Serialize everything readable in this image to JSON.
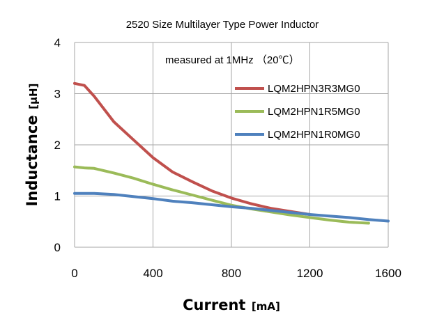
{
  "chart_data": {
    "type": "line",
    "title": "2520 Size Multilayer Type Power Inductor",
    "annotation": "measured at 1MHz （20℃）",
    "xlabel": "Current",
    "xlabel_unit": "[mA]",
    "ylabel": "Inductance",
    "ylabel_unit": "[μH]",
    "xlim": [
      0,
      1600
    ],
    "ylim": [
      0,
      4
    ],
    "x_ticks": [
      0,
      400,
      800,
      1200,
      1600
    ],
    "y_ticks": [
      0,
      1,
      2,
      3,
      4
    ],
    "grid": true,
    "legend_position": "top-right",
    "series": [
      {
        "name": "LQM2HPN3R3MG0",
        "color": "#c0504d",
        "points": [
          [
            0,
            3.2
          ],
          [
            50,
            3.16
          ],
          [
            100,
            2.95
          ],
          [
            200,
            2.45
          ],
          [
            300,
            2.1
          ],
          [
            400,
            1.75
          ],
          [
            500,
            1.47
          ],
          [
            600,
            1.28
          ],
          [
            700,
            1.1
          ],
          [
            800,
            0.96
          ],
          [
            900,
            0.85
          ],
          [
            1000,
            0.76
          ],
          [
            1100,
            0.7
          ],
          [
            1200,
            0.64
          ]
        ]
      },
      {
        "name": "LQM2HPN1R5MG0",
        "color": "#9bbb59",
        "points": [
          [
            0,
            1.57
          ],
          [
            50,
            1.55
          ],
          [
            100,
            1.54
          ],
          [
            200,
            1.45
          ],
          [
            300,
            1.35
          ],
          [
            400,
            1.23
          ],
          [
            500,
            1.12
          ],
          [
            600,
            1.02
          ],
          [
            700,
            0.92
          ],
          [
            800,
            0.82
          ],
          [
            900,
            0.75
          ],
          [
            1000,
            0.69
          ],
          [
            1100,
            0.63
          ],
          [
            1200,
            0.58
          ],
          [
            1300,
            0.53
          ],
          [
            1400,
            0.49
          ],
          [
            1500,
            0.47
          ]
        ]
      },
      {
        "name": "LQM2HPN1R0MG0",
        "color": "#4f81bd",
        "points": [
          [
            0,
            1.05
          ],
          [
            100,
            1.05
          ],
          [
            200,
            1.03
          ],
          [
            300,
            0.99
          ],
          [
            400,
            0.95
          ],
          [
            500,
            0.9
          ],
          [
            600,
            0.87
          ],
          [
            700,
            0.83
          ],
          [
            800,
            0.79
          ],
          [
            900,
            0.76
          ],
          [
            1000,
            0.72
          ],
          [
            1100,
            0.68
          ],
          [
            1200,
            0.64
          ],
          [
            1300,
            0.61
          ],
          [
            1400,
            0.58
          ],
          [
            1500,
            0.54
          ],
          [
            1600,
            0.51
          ]
        ]
      }
    ]
  }
}
